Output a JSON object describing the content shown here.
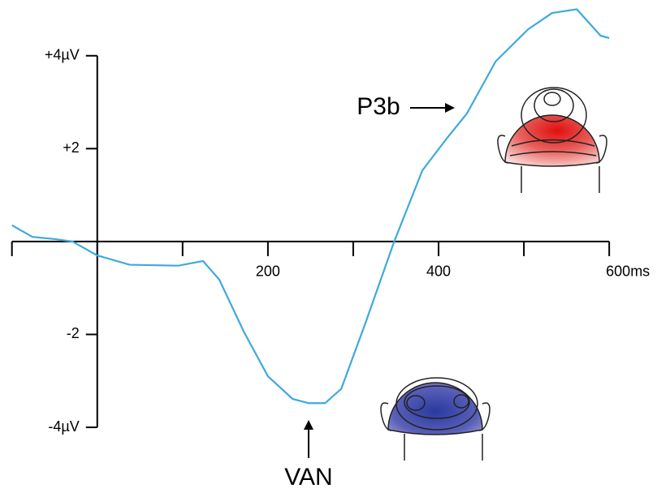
{
  "chart_data": {
    "type": "line",
    "x": [
      -100,
      -76,
      -48,
      -29,
      0,
      38,
      95,
      124,
      143,
      172,
      200,
      229,
      248,
      267,
      286,
      314,
      348,
      381,
      410,
      433,
      467,
      505,
      533,
      562,
      590,
      600
    ],
    "series": [
      {
        "color": "#3fa9dc",
        "values": [
          0.35,
          0.1,
          0.05,
          0,
          -0.3,
          -0.5,
          -0.52,
          -0.42,
          -0.82,
          -1.95,
          -2.9,
          -3.39,
          -3.48,
          -3.48,
          -3.17,
          -1.77,
          0,
          1.53,
          2.23,
          2.75,
          3.88,
          4.57,
          4.92,
          5.0,
          4.43,
          4.38
        ]
      }
    ],
    "xlim": [
      -114,
      656
    ],
    "ylim": [
      -5.5,
      5.2
    ],
    "xticks": [
      200,
      400,
      {
        "value": 600,
        "label": "600ms"
      }
    ],
    "xminor_ticks": [
      -100,
      0,
      100,
      300,
      500
    ],
    "yticks": [
      {
        "value": 4,
        "label": "+4µV"
      },
      {
        "value": 2,
        "label": "+2"
      },
      -2,
      {
        "value": -4,
        "label": "-4µV"
      }
    ],
    "annotations": [
      "P3b",
      "VAN"
    ]
  }
}
